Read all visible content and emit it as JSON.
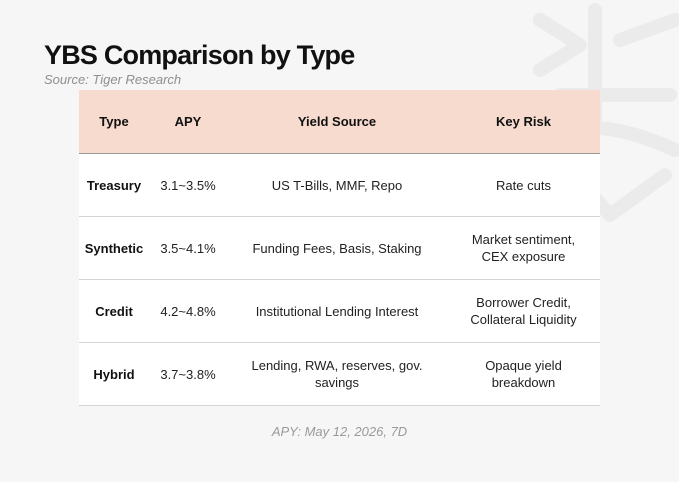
{
  "title": "YBS Comparison by Type",
  "source": "Source: Tiger Research",
  "colors": {
    "header_background": "#f6dbce",
    "page_background": "#f6f6f6",
    "table_background": "#ffffff"
  },
  "table": {
    "headers": [
      "Type",
      "APY",
      "Yield Source",
      "Key Risk"
    ],
    "rows": [
      {
        "type": "Treasury",
        "apy": "3.1~3.5%",
        "yield_source": "US T-Bills, MMF, Repo",
        "key_risk": "Rate cuts"
      },
      {
        "type": "Synthetic",
        "apy": "3.5~4.1%",
        "yield_source": "Funding Fees, Basis, Staking",
        "key_risk": "Market sentiment, CEX exposure"
      },
      {
        "type": "Credit",
        "apy": "4.2~4.8%",
        "yield_source": "Institutional Lending Interest",
        "key_risk": "Borrower Credit, Collateral Liquidity"
      },
      {
        "type": "Hybrid",
        "apy": "3.7~3.8%",
        "yield_source": "Lending, RWA, reserves, gov. savings",
        "key_risk": "Opaque yield breakdown"
      }
    ]
  },
  "footnote": "APY: May 12, 2026, 7D",
  "watermark_icon": "tiger-logo-watermark"
}
